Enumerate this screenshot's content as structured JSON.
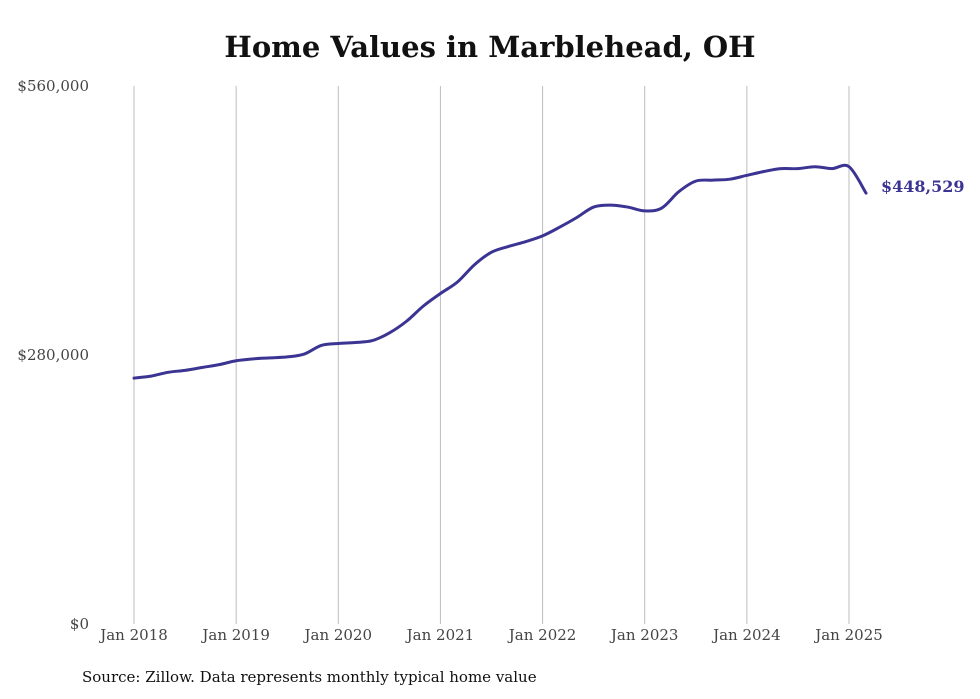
{
  "chart_data": {
    "type": "line",
    "title": "Home Values in Marblehead, OH",
    "source": "Source: Zillow. Data represents monthly typical home value",
    "xlabel": "",
    "ylabel": "",
    "ylim": [
      0,
      560000
    ],
    "y_ticks": [
      {
        "value": 0,
        "label": "$0"
      },
      {
        "value": 280000,
        "label": "$280,000"
      },
      {
        "value": 560000,
        "label": "$560,000"
      }
    ],
    "x_ticks": [
      {
        "value": "2018-01",
        "label": "Jan 2018"
      },
      {
        "value": "2019-01",
        "label": "Jan 2019"
      },
      {
        "value": "2020-01",
        "label": "Jan 2020"
      },
      {
        "value": "2021-01",
        "label": "Jan 2021"
      },
      {
        "value": "2022-01",
        "label": "Jan 2022"
      },
      {
        "value": "2023-01",
        "label": "Jan 2023"
      },
      {
        "value": "2024-01",
        "label": "Jan 2024"
      },
      {
        "value": "2025-01",
        "label": "Jan 2025"
      }
    ],
    "grid": "vertical",
    "line_color": "#3b3492",
    "end_label": "$448,529",
    "series": [
      {
        "x": [
          "2018-01",
          "2018-03",
          "2018-05",
          "2018-07",
          "2018-09",
          "2018-11",
          "2019-01",
          "2019-03",
          "2019-05",
          "2019-07",
          "2019-09",
          "2019-11",
          "2020-01",
          "2020-03",
          "2020-05",
          "2020-07",
          "2020-09",
          "2020-11",
          "2021-01",
          "2021-03",
          "2021-05",
          "2021-07",
          "2021-09",
          "2021-11",
          "2022-01",
          "2022-03",
          "2022-05",
          "2022-07",
          "2022-09",
          "2022-11",
          "2023-01",
          "2023-03",
          "2023-05",
          "2023-07",
          "2023-09",
          "2023-11",
          "2024-01",
          "2024-03",
          "2024-05",
          "2024-07",
          "2024-09",
          "2024-11",
          "2025-01",
          "2025-03"
        ],
        "values": [
          256000,
          258000,
          262000,
          264000,
          267000,
          270000,
          274000,
          276000,
          277000,
          278000,
          281000,
          290000,
          292000,
          293000,
          295000,
          303000,
          315000,
          331000,
          344000,
          356000,
          374000,
          387000,
          393000,
          398000,
          404000,
          413000,
          423000,
          434000,
          436000,
          434000,
          430000,
          433000,
          450000,
          461000,
          462000,
          463000,
          467000,
          471000,
          474000,
          474000,
          476000,
          474000,
          476000,
          448529
        ]
      }
    ]
  }
}
